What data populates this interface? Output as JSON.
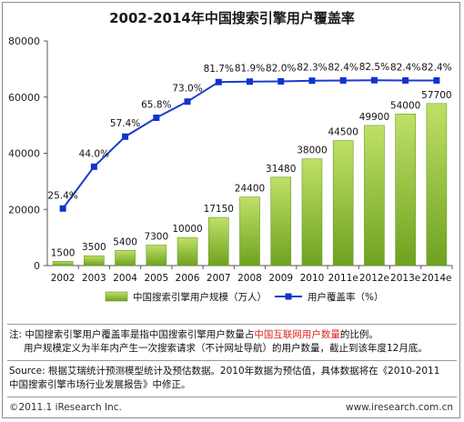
{
  "chart_data": {
    "type": "bar+line",
    "title": "2002-2014年中国搜索引擎用户覆盖率",
    "categories": [
      "2002",
      "2003",
      "2004",
      "2005",
      "2006",
      "2007",
      "2008",
      "2009",
      "2010",
      "2011e",
      "2012e",
      "2013e",
      "2014e"
    ],
    "series": [
      {
        "name": "中国搜索引擎用户规模（万人）",
        "type": "bar",
        "axis": "left",
        "values": [
          1500,
          3500,
          5400,
          7300,
          10000,
          17150,
          24400,
          31480,
          38000,
          44500,
          49900,
          54000,
          57700
        ],
        "labels": [
          "1500",
          "3500",
          "5400",
          "7300",
          "10000",
          "17150",
          "24400",
          "31480",
          "38000",
          "44500",
          "49900",
          "54000",
          "57700"
        ]
      },
      {
        "name": "用户覆盖率（%）",
        "type": "line",
        "axis": "right",
        "values": [
          25.4,
          44.0,
          57.4,
          65.8,
          73.0,
          81.7,
          81.9,
          82.0,
          82.3,
          82.4,
          82.5,
          82.4,
          82.4
        ],
        "labels": [
          "25.4%",
          "44.0%",
          "57.4%",
          "65.8%",
          "73.0%",
          "81.7%",
          "81.9%",
          "82.0%",
          "82.3%",
          "82.4%",
          "82.5%",
          "82.4%",
          "82.4%"
        ]
      }
    ],
    "y_ticks": [
      "0",
      "20000",
      "40000",
      "60000",
      "80000"
    ],
    "ylim": [
      0,
      80000
    ],
    "grid": false,
    "legend_position": "bottom-center",
    "colors": {
      "bar_top": "#bfe067",
      "bar_bottom": "#6ea21f",
      "line": "#1a3bd0",
      "marker": "#1133cc"
    }
  },
  "notes": {
    "note_prefix": "注: 中国搜索引擎用户覆盖率是指中国搜索引擎用户数量占",
    "note_red": "中国互联网用户数量",
    "note_suffix": "的比例。",
    "note_line2": "用户规模定义为半年内产生一次搜索请求（不计网址导航）的用户数量，截止到该年度12月底。",
    "source_line1": "Source: 根据艾瑞统计预测模型统计及预估数据。2010年数据为预估值，具体数据将在《2010-2011",
    "source_line2": "中国搜索引擎市场行业发展报告》中修正。"
  },
  "footer": {
    "copyright": "©2011.1 iResearch Inc.",
    "website": "www.iresearch.com.cn"
  }
}
